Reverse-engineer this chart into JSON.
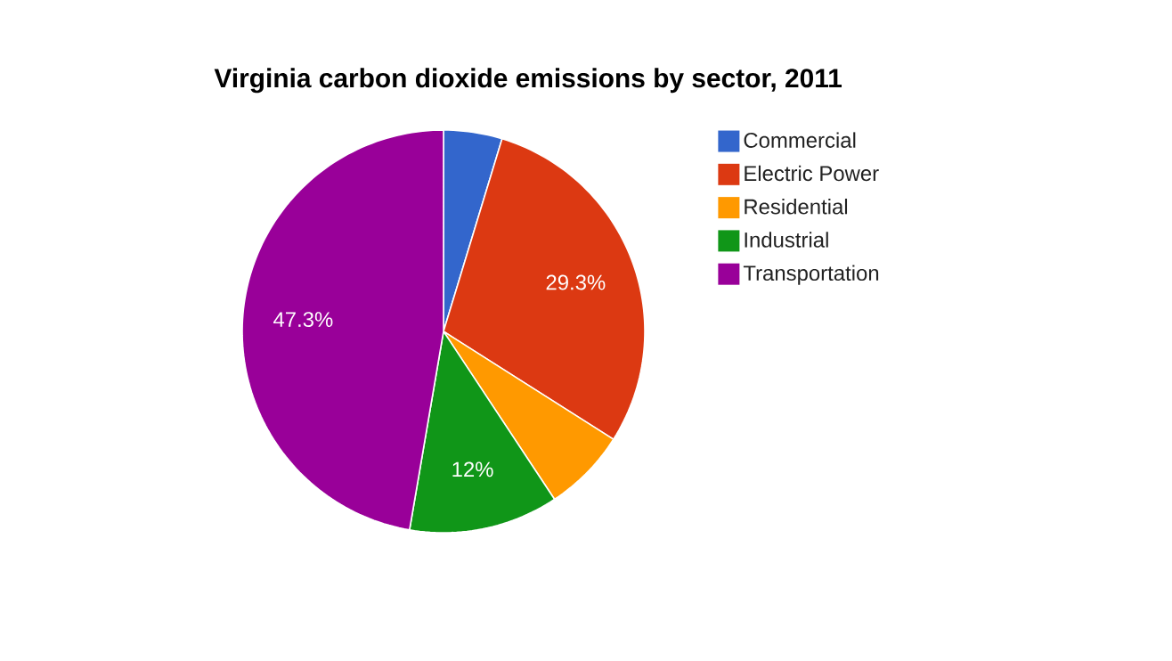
{
  "chart_data": {
    "type": "pie",
    "title": "Virginia carbon dioxide emissions by sector, 2011",
    "categories": [
      "Commercial",
      "Electric Power",
      "Residential",
      "Industrial",
      "Transportation"
    ],
    "values": [
      4.7,
      29.3,
      6.7,
      12,
      47.3
    ],
    "colors": [
      "#3366cc",
      "#dc3912",
      "#ff9900",
      "#109618",
      "#990099"
    ],
    "value_labels": [
      null,
      "29.3%",
      null,
      "12%",
      "47.3%"
    ],
    "legend": "right"
  }
}
